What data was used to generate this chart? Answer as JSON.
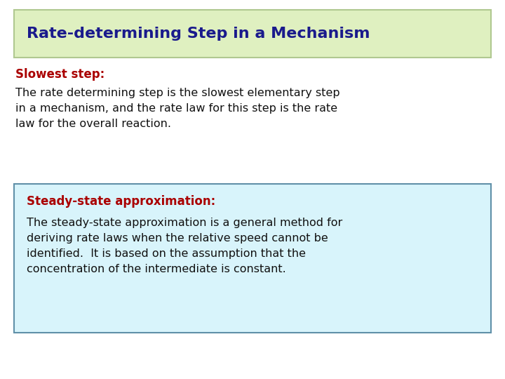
{
  "title": "Rate-determining Step in a Mechanism",
  "title_color": "#1a1a8c",
  "title_bg_color": "#dff0c0",
  "title_border_color": "#b0c890",
  "section1_label": "Slowest step:",
  "section1_label_color": "#aa0000",
  "section1_text": "The rate determining step is the slowest elementary step\nin a mechanism, and the rate law for this step is the rate\nlaw for the overall reaction.",
  "section1_text_color": "#111111",
  "section2_label": "Steady-state approximation:",
  "section2_label_color": "#aa0000",
  "section2_bg_color": "#d8f4fb",
  "section2_border_color": "#6090a8",
  "section2_text_line1": "The steady-state approximation is a general method for",
  "section2_text_line2": "deriving rate laws when the relative speed cannot be",
  "section2_text_line3": "identified.  It is based on the assumption that the",
  "section2_text_line4": "concentration of the intermediate is constant.",
  "section2_text_color": "#111111",
  "bg_color": "#ffffff",
  "title_fontsize": 16,
  "label_fontsize": 12,
  "body_fontsize": 11.5
}
